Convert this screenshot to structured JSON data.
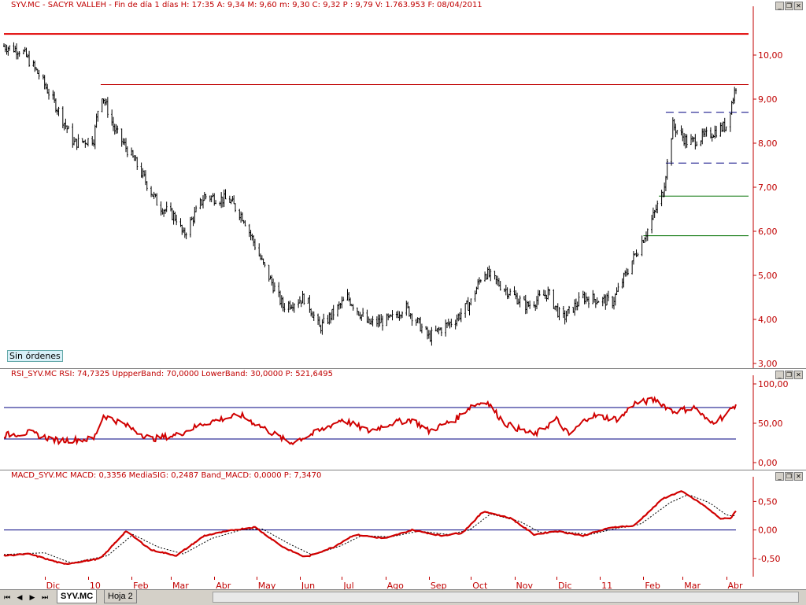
{
  "main_title": "SYV.MC - SACYR VALLEH - Fin de día 1 días H: 17:35  A: 9,34  M: 9,60  m: 9,30  C: 9,32  P : 9,79  V: 1.763.953  F: 08/04/2011",
  "rsi_title": "RSI_SYV.MC  RSI: 74,7325  UppperBand: 70,0000  LowerBand: 30,0000  P: 521,6495",
  "macd_title": "MACD_SYV.MC  MACD: 0,3356  MediaSIG: 0,2487  Band_MACD: 0,0000  P: 7,3470",
  "badge": "Sin órdenes",
  "tabs": [
    "SYV.MC",
    "Hoja 2"
  ],
  "chart_data": [
    {
      "type": "candlestick",
      "ylim": [
        3.0,
        11.0
      ],
      "yticks": [
        "10,00",
        "9,00",
        "8,00",
        "7,00",
        "6,00",
        "5,00",
        "4,00",
        "3,00"
      ],
      "ytick_values": [
        10,
        9,
        8,
        7,
        6,
        5,
        4,
        3
      ],
      "xticks": [
        "Dic",
        "10",
        "Feb",
        "Mar",
        "Abr",
        "May",
        "Jun",
        "Jul",
        "Ago",
        "Sep",
        "Oct",
        "Nov",
        "Dic",
        "11",
        "Feb",
        "Mar",
        "Abr"
      ],
      "x_start": "2009-11-02",
      "x_end": "2011-04-08",
      "close_keypoints": [
        [
          "2009-11-02",
          10.2
        ],
        [
          "2009-11-15",
          10.1
        ],
        [
          "2009-11-28",
          9.5
        ],
        [
          "2009-12-10",
          8.8
        ],
        [
          "2009-12-22",
          8.0
        ],
        [
          "2010-01-05",
          8.1
        ],
        [
          "2010-01-10",
          9.2
        ],
        [
          "2010-01-20",
          8.3
        ],
        [
          "2010-02-05",
          7.5
        ],
        [
          "2010-02-20",
          6.6
        ],
        [
          "2010-03-05",
          6.3
        ],
        [
          "2010-03-10",
          5.9
        ],
        [
          "2010-03-25",
          6.8
        ],
        [
          "2010-04-12",
          6.7
        ],
        [
          "2010-04-22",
          6.3
        ],
        [
          "2010-05-05",
          5.3
        ],
        [
          "2010-05-20",
          4.3
        ],
        [
          "2010-06-05",
          4.5
        ],
        [
          "2010-06-15",
          3.8
        ],
        [
          "2010-07-05",
          4.5
        ],
        [
          "2010-07-20",
          3.9
        ],
        [
          "2010-08-05",
          4.0
        ],
        [
          "2010-08-15",
          4.3
        ],
        [
          "2010-09-01",
          3.6
        ],
        [
          "2010-09-20",
          4.0
        ],
        [
          "2010-10-01",
          4.4
        ],
        [
          "2010-10-10",
          5.1
        ],
        [
          "2010-10-25",
          4.7
        ],
        [
          "2010-11-10",
          4.3
        ],
        [
          "2010-11-25",
          4.6
        ],
        [
          "2010-12-05",
          4.0
        ],
        [
          "2010-12-20",
          4.5
        ],
        [
          "2011-01-10",
          4.4
        ],
        [
          "2011-01-25",
          5.4
        ],
        [
          "2011-02-05",
          6.1
        ],
        [
          "2011-02-15",
          6.9
        ],
        [
          "2011-02-22",
          8.4
        ],
        [
          "2011-03-05",
          8.0
        ],
        [
          "2011-03-20",
          8.2
        ],
        [
          "2011-04-01",
          8.4
        ],
        [
          "2011-04-08",
          9.3
        ]
      ],
      "horizontal_lines": [
        {
          "value": 10.48,
          "color": "#e00000",
          "style": "solid",
          "width": 2,
          "from": "2009-11-02",
          "to": "2011-04-08"
        },
        {
          "value": 9.33,
          "color": "#c00000",
          "style": "solid",
          "width": 1,
          "from": "2010-01-10",
          "to": "2011-04-08"
        },
        {
          "value": 8.7,
          "color": "#000080",
          "style": "dashed",
          "width": 1,
          "from": "2011-02-17",
          "to": "2011-04-08"
        },
        {
          "value": 7.55,
          "color": "#000080",
          "style": "dashed",
          "width": 1,
          "from": "2011-02-17",
          "to": "2011-04-08"
        },
        {
          "value": 6.8,
          "color": "#007000",
          "style": "solid",
          "width": 1,
          "from": "2011-02-12",
          "to": "2011-04-08"
        },
        {
          "value": 5.9,
          "color": "#007000",
          "style": "solid",
          "width": 1,
          "from": "2011-02-01",
          "to": "2011-04-08"
        }
      ]
    },
    {
      "type": "line",
      "name": "RSI",
      "ylim": [
        -5,
        105
      ],
      "yticks": [
        "100,00",
        "50,00",
        "0,00"
      ],
      "ytick_values": [
        100,
        50,
        0
      ],
      "upper_band": 70,
      "lower_band": 30,
      "keypoints": [
        [
          "2009-11-02",
          35
        ],
        [
          "2009-11-20",
          38
        ],
        [
          "2009-12-10",
          28
        ],
        [
          "2010-01-05",
          30
        ],
        [
          "2010-01-12",
          60
        ],
        [
          "2010-01-25",
          50
        ],
        [
          "2010-02-15",
          30
        ],
        [
          "2010-03-05",
          35
        ],
        [
          "2010-03-25",
          50
        ],
        [
          "2010-04-05",
          55
        ],
        [
          "2010-04-20",
          60
        ],
        [
          "2010-05-10",
          40
        ],
        [
          "2010-05-25",
          25
        ],
        [
          "2010-06-15",
          40
        ],
        [
          "2010-07-01",
          55
        ],
        [
          "2010-07-20",
          40
        ],
        [
          "2010-08-05",
          50
        ],
        [
          "2010-08-20",
          55
        ],
        [
          "2010-09-01",
          40
        ],
        [
          "2010-09-20",
          55
        ],
        [
          "2010-10-01",
          72
        ],
        [
          "2010-10-12",
          78
        ],
        [
          "2010-10-25",
          50
        ],
        [
          "2010-11-15",
          35
        ],
        [
          "2010-12-01",
          55
        ],
        [
          "2010-12-10",
          35
        ],
        [
          "2010-12-25",
          60
        ],
        [
          "2011-01-15",
          55
        ],
        [
          "2011-01-25",
          75
        ],
        [
          "2011-02-10",
          80
        ],
        [
          "2011-02-22",
          65
        ],
        [
          "2011-03-10",
          70
        ],
        [
          "2011-03-20",
          50
        ],
        [
          "2011-04-01",
          60
        ],
        [
          "2011-04-08",
          74.7
        ]
      ]
    },
    {
      "type": "line",
      "name": "MACD",
      "ylim": [
        -0.75,
        0.85
      ],
      "yticks": [
        "0,50",
        "0,00",
        "-0,50"
      ],
      "ytick_values": [
        0.5,
        0,
        -0.5
      ],
      "zero_line": 0,
      "macd_keypoints": [
        [
          "2009-11-02",
          -0.45
        ],
        [
          "2009-11-20",
          -0.42
        ],
        [
          "2009-12-15",
          -0.6
        ],
        [
          "2010-01-10",
          -0.5
        ],
        [
          "2010-01-28",
          -0.02
        ],
        [
          "2010-02-15",
          -0.35
        ],
        [
          "2010-03-05",
          -0.45
        ],
        [
          "2010-03-25",
          -0.1
        ],
        [
          "2010-04-15",
          0.0
        ],
        [
          "2010-04-30",
          0.05
        ],
        [
          "2010-05-20",
          -0.3
        ],
        [
          "2010-06-05",
          -0.48
        ],
        [
          "2010-06-25",
          -0.3
        ],
        [
          "2010-07-10",
          -0.08
        ],
        [
          "2010-08-01",
          -0.15
        ],
        [
          "2010-08-20",
          0.0
        ],
        [
          "2010-09-10",
          -0.1
        ],
        [
          "2010-09-25",
          -0.05
        ],
        [
          "2010-10-10",
          0.33
        ],
        [
          "2010-10-30",
          0.2
        ],
        [
          "2010-11-15",
          -0.08
        ],
        [
          "2010-12-01",
          -0.02
        ],
        [
          "2010-12-20",
          -0.1
        ],
        [
          "2011-01-10",
          0.05
        ],
        [
          "2011-01-25",
          0.07
        ],
        [
          "2011-02-15",
          0.55
        ],
        [
          "2011-02-28",
          0.68
        ],
        [
          "2011-03-15",
          0.45
        ],
        [
          "2011-03-28",
          0.2
        ],
        [
          "2011-04-04",
          0.2
        ],
        [
          "2011-04-08",
          0.34
        ]
      ],
      "signal_keypoints": [
        [
          "2009-11-02",
          -0.43
        ],
        [
          "2009-12-01",
          -0.4
        ],
        [
          "2009-12-20",
          -0.58
        ],
        [
          "2010-01-15",
          -0.45
        ],
        [
          "2010-02-02",
          -0.08
        ],
        [
          "2010-02-20",
          -0.3
        ],
        [
          "2010-03-10",
          -0.42
        ],
        [
          "2010-03-30",
          -0.15
        ],
        [
          "2010-04-20",
          0.0
        ],
        [
          "2010-05-05",
          0.02
        ],
        [
          "2010-05-25",
          -0.25
        ],
        [
          "2010-06-10",
          -0.44
        ],
        [
          "2010-06-30",
          -0.28
        ],
        [
          "2010-07-15",
          -0.1
        ],
        [
          "2010-08-05",
          -0.12
        ],
        [
          "2010-08-25",
          -0.02
        ],
        [
          "2010-09-15",
          -0.08
        ],
        [
          "2010-09-30",
          0.0
        ],
        [
          "2010-10-15",
          0.28
        ],
        [
          "2010-11-05",
          0.15
        ],
        [
          "2010-11-20",
          -0.05
        ],
        [
          "2010-12-05",
          -0.03
        ],
        [
          "2010-12-25",
          -0.08
        ],
        [
          "2011-01-15",
          0.04
        ],
        [
          "2011-01-30",
          0.1
        ],
        [
          "2011-02-20",
          0.48
        ],
        [
          "2011-03-05",
          0.62
        ],
        [
          "2011-03-20",
          0.48
        ],
        [
          "2011-04-02",
          0.25
        ],
        [
          "2011-04-08",
          0.25
        ]
      ]
    }
  ],
  "colors": {
    "price": "#000000",
    "rsi": "#d00000",
    "macd": "#d00000",
    "signal": "#000000",
    "band": "#000080",
    "axis": "#c00000"
  }
}
